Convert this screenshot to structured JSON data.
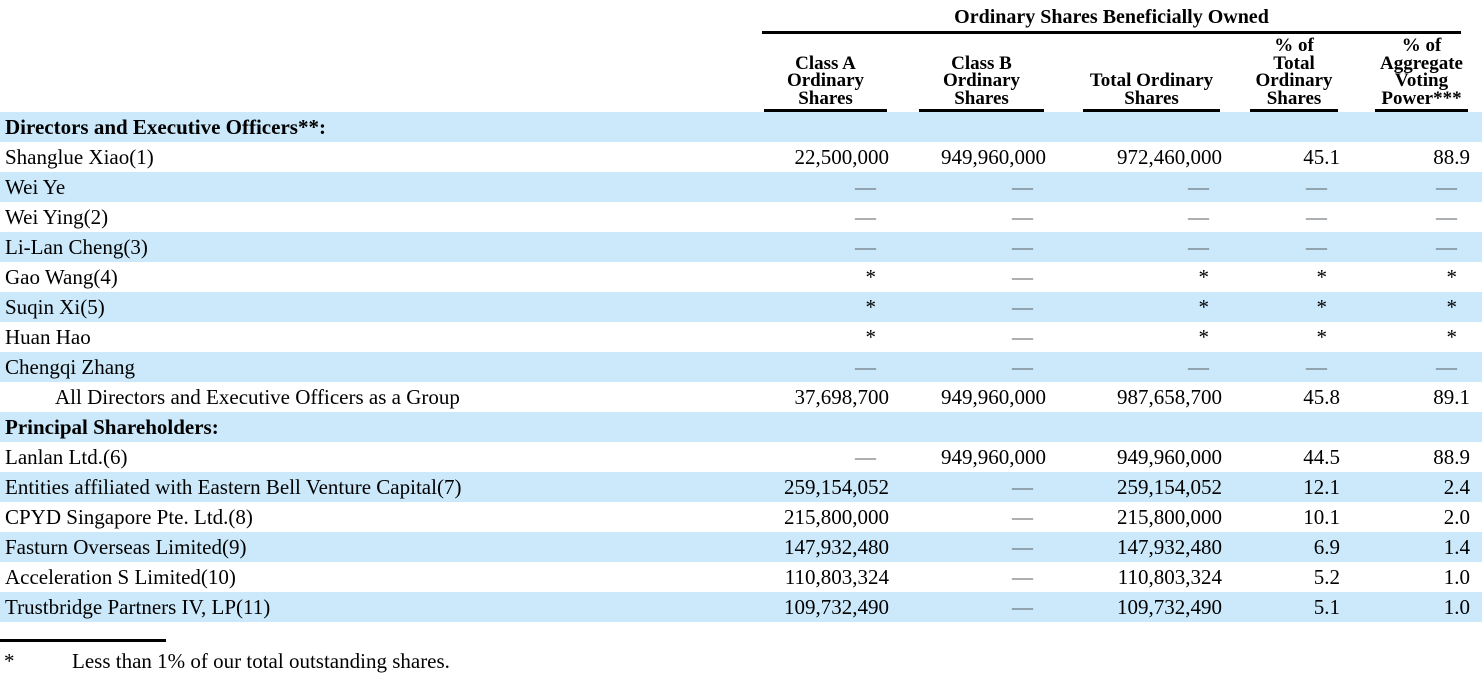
{
  "table": {
    "group_header": "Ordinary Shares Beneficially Owned",
    "columns": [
      "Class A\nOrdinary\nShares",
      "Class B\nOrdinary\nShares",
      "Total Ordinary\nShares",
      "% of\nTotal\nOrdinary\nShares",
      "% of\nAggregate\nVoting\nPower***"
    ],
    "rows": [
      {
        "label": "Directors and Executive Officers**:",
        "section": true,
        "values": [
          "",
          "",
          "",
          "",
          ""
        ]
      },
      {
        "label": "Shanglue Xiao(1)",
        "values": [
          "22,500,000",
          "949,960,000",
          "972,460,000",
          "45.1",
          "88.9"
        ]
      },
      {
        "label": "Wei Ye",
        "values": [
          "—",
          "—",
          "—",
          "—",
          "—"
        ]
      },
      {
        "label": "Wei Ying(2)",
        "values": [
          "—",
          "—",
          "—",
          "—",
          "—"
        ]
      },
      {
        "label": "Li-Lan Cheng(3)",
        "values": [
          "—",
          "—",
          "—",
          "—",
          "—"
        ]
      },
      {
        "label": "Gao Wang(4)",
        "values": [
          "*",
          "—",
          "*",
          "*",
          "*"
        ]
      },
      {
        "label": "Suqin Xi(5)",
        "values": [
          "*",
          "—",
          "*",
          "*",
          "*"
        ]
      },
      {
        "label": "Huan Hao",
        "values": [
          "*",
          "—",
          "*",
          "*",
          "*"
        ]
      },
      {
        "label": "Chengqi Zhang",
        "values": [
          "—",
          "—",
          "—",
          "—",
          "—"
        ]
      },
      {
        "label": "All Directors and Executive Officers as a Group",
        "indent": true,
        "values": [
          "37,698,700",
          "949,960,000",
          "987,658,700",
          "45.8",
          "89.1"
        ]
      },
      {
        "label": "Principal Shareholders:",
        "section": true,
        "values": [
          "",
          "",
          "",
          "",
          ""
        ]
      },
      {
        "label": "Lanlan Ltd.(6)",
        "values": [
          "—",
          "949,960,000",
          "949,960,000",
          "44.5",
          "88.9"
        ]
      },
      {
        "label": "Entities affiliated with Eastern Bell Venture Capital(7)",
        "values": [
          "259,154,052",
          "—",
          "259,154,052",
          "12.1",
          "2.4"
        ]
      },
      {
        "label": "CPYD Singapore Pte. Ltd.(8)",
        "values": [
          "215,800,000",
          "—",
          "215,800,000",
          "10.1",
          "2.0"
        ]
      },
      {
        "label": "Fasturn Overseas Limited(9)",
        "values": [
          "147,932,480",
          "—",
          "147,932,480",
          "6.9",
          "1.4"
        ]
      },
      {
        "label": "Acceleration S Limited(10)",
        "values": [
          "110,803,324",
          "—",
          "110,803,324",
          "5.2",
          "1.0"
        ]
      },
      {
        "label": "Trustbridge Partners IV, LP(11)",
        "values": [
          "109,732,490",
          "—",
          "109,732,490",
          "5.1",
          "1.0"
        ]
      }
    ],
    "footnote": {
      "marker": "*",
      "text": "Less than 1% of our total outstanding shares."
    },
    "colors": {
      "row_shade": "#cbe9fa",
      "dash": "#5a6066",
      "text": "#000000"
    }
  }
}
